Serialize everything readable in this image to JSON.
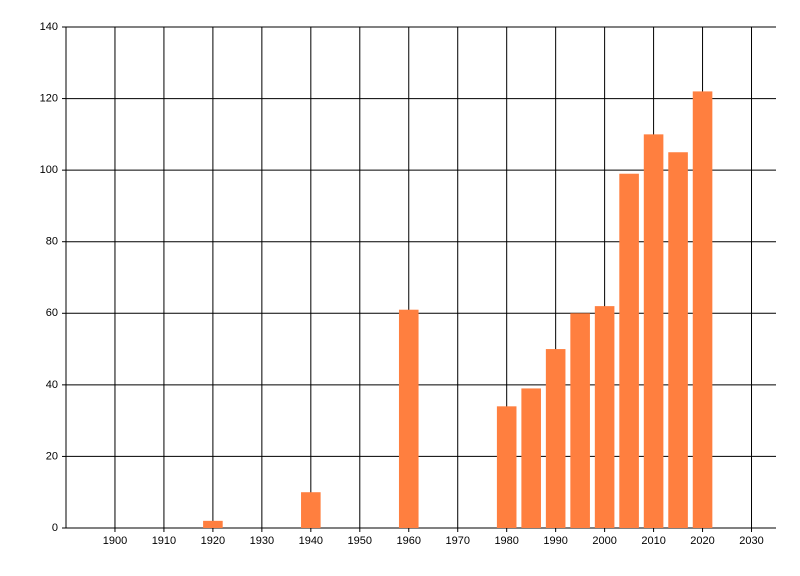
{
  "chart_data": {
    "type": "bar",
    "x": [
      1920,
      1940,
      1960,
      1980,
      1985,
      1990,
      1995,
      2000,
      2005,
      2010,
      2015,
      2020
    ],
    "values": [
      2,
      10,
      61,
      34,
      39,
      50,
      60,
      62,
      99,
      110,
      105,
      122
    ],
    "color": "#ff7f3f",
    "xlim": [
      1890,
      2035
    ],
    "xticks": [
      1900,
      1910,
      1920,
      1930,
      1940,
      1950,
      1960,
      1970,
      1980,
      1990,
      2000,
      2010,
      2020,
      2030
    ],
    "ylim": [
      0,
      140
    ],
    "yticks": [
      0,
      20,
      40,
      60,
      80,
      100,
      120,
      140
    ],
    "grid": true
  }
}
